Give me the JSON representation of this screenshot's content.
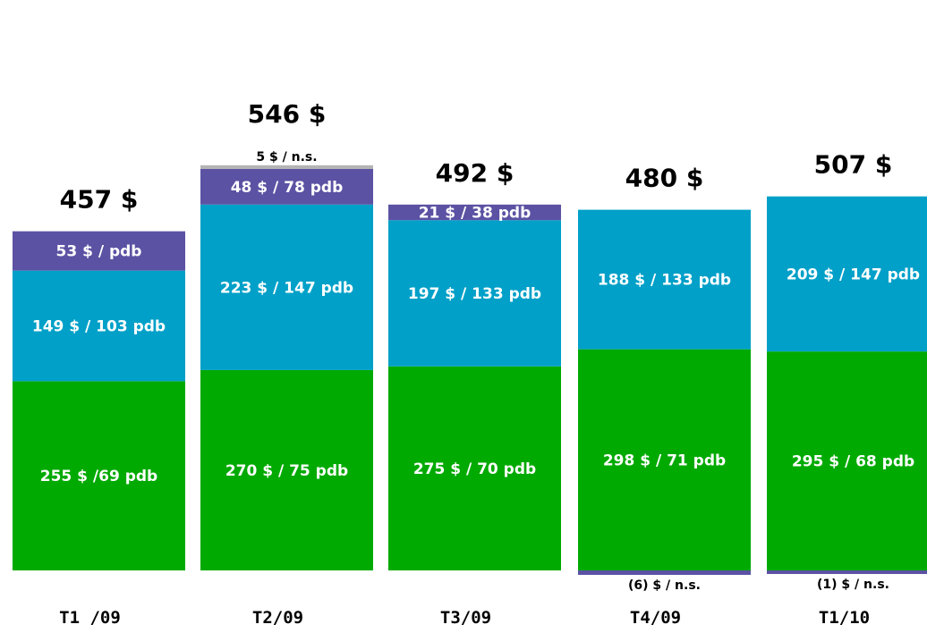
{
  "chart_data": {
    "type": "bar",
    "stacked": true,
    "categories": [
      "T1 /09",
      "T2/09",
      "T3/09",
      "T4/09",
      "T1/10"
    ],
    "totals": [
      457,
      546,
      492,
      480,
      507
    ],
    "total_labels": [
      "457 $",
      "546 $",
      "492 $",
      "480 $",
      "507 $"
    ],
    "series": [
      {
        "color": "#00aa00",
        "values": [
          255,
          270,
          275,
          298,
          295
        ],
        "labels": [
          "255  $ /69 pdb",
          "270 $ / 75 pdb",
          "275 $ / 70 pdb",
          "298 $ / 71 pdb",
          "295 $ / 68 pdb"
        ]
      },
      {
        "color": "#00a0c8",
        "values": [
          149,
          223,
          197,
          188,
          209
        ],
        "labels": [
          "149 $ / 103 pdb",
          "223 $ / 147 pdb",
          "197 $ / 133 pdb",
          "188 $ / 133 pdb",
          "209 $ / 147 pdb"
        ]
      },
      {
        "color": "#5b52a3",
        "values": [
          53,
          48,
          21,
          0,
          0
        ],
        "labels": [
          "53 $ / pdb",
          "48 $ / 78 pdb",
          "21 $ / 38 pdb",
          "",
          ""
        ]
      },
      {
        "color": "#b4b4b4",
        "values": [
          0,
          5,
          0,
          0,
          0
        ],
        "labels": [
          "",
          "5 $ / n.s.",
          "",
          "",
          ""
        ]
      },
      {
        "color": "#5b52a3",
        "values": [
          0,
          0,
          0,
          -6,
          -1
        ],
        "labels": [
          "",
          "",
          "",
          "(6) $ / n.s.",
          "(1) $ / n.s."
        ]
      }
    ],
    "xlabel": "",
    "ylabel": "",
    "legend": "none",
    "grid": false
  }
}
